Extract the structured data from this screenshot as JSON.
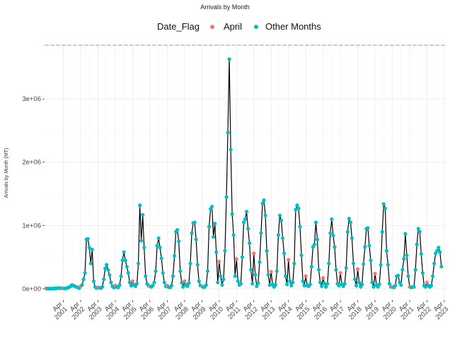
{
  "chart_data": {
    "type": "line",
    "title": "Arrivals by Month",
    "xlabel": "",
    "ylabel": "Arrivals by Month (MT)",
    "legend": {
      "title": "Date_Flag",
      "position": "top",
      "entries": [
        {
          "label": "April",
          "color": "#F8766D"
        },
        {
          "label": "Other Months",
          "color": "#00BFC4"
        }
      ]
    },
    "grid": true,
    "line_color": "#000000",
    "x_ticks": [
      {
        "month": "Apr",
        "year": "2001"
      },
      {
        "month": "Apr",
        "year": "2002"
      },
      {
        "month": "Apr",
        "year": "2003"
      },
      {
        "month": "Apr",
        "year": "2004"
      },
      {
        "month": "Apr",
        "year": "2005"
      },
      {
        "month": "Apr",
        "year": "2006"
      },
      {
        "month": "Apr",
        "year": "2007"
      },
      {
        "month": "Apr",
        "year": "2008"
      },
      {
        "month": "Apr",
        "year": "2009"
      },
      {
        "month": "Apr",
        "year": "2010"
      },
      {
        "month": "Apr",
        "year": "2011"
      },
      {
        "month": "Apr",
        "year": "2012"
      },
      {
        "month": "Apr",
        "year": "2013"
      },
      {
        "month": "Apr",
        "year": "2014"
      },
      {
        "month": "Apr",
        "year": "2015"
      },
      {
        "month": "Apr",
        "year": "2016"
      },
      {
        "month": "Apr",
        "year": "2017"
      },
      {
        "month": "Apr",
        "year": "2018"
      },
      {
        "month": "Apr",
        "year": "2019"
      },
      {
        "month": "Apr",
        "year": "2020"
      },
      {
        "month": "Apr",
        "year": "2021"
      },
      {
        "month": "Apr",
        "year": "2022"
      },
      {
        "month": "Apr",
        "year": "2023"
      }
    ],
    "y_ticks": [
      {
        "value": 0,
        "label": "0e+00"
      },
      {
        "value": 1000000,
        "label": "1e+06"
      },
      {
        "value": 2000000,
        "label": "2e+06"
      },
      {
        "value": 3000000,
        "label": "3e+06"
      }
    ],
    "xlim": [
      "2000-03",
      "2023-05"
    ],
    "ylim": [
      -180000,
      3850000
    ],
    "x_start": "2000-04",
    "series": [
      {
        "name": "",
        "values": [
          5000,
          3000,
          2000,
          3000,
          2000,
          4000,
          6000,
          8000,
          10000,
          12000,
          10000,
          8000,
          6000,
          5000,
          8000,
          15000,
          25000,
          40000,
          60000,
          50000,
          40000,
          30000,
          20000,
          10000,
          40000,
          60000,
          150000,
          250000,
          780000,
          790000,
          650000,
          400000,
          620000,
          120000,
          30000,
          10000,
          20000,
          15000,
          10000,
          30000,
          150000,
          320000,
          380000,
          300000,
          220000,
          100000,
          40000,
          20000,
          50000,
          30000,
          20000,
          60000,
          200000,
          450000,
          580000,
          450000,
          350000,
          250000,
          100000,
          50000,
          120000,
          60000,
          40000,
          80000,
          400000,
          1320000,
          760000,
          1170000,
          650000,
          200000,
          80000,
          50000,
          40000,
          30000,
          50000,
          100000,
          280000,
          680000,
          800000,
          650000,
          480000,
          250000,
          100000,
          40000,
          50000,
          25000,
          20000,
          50000,
          200000,
          520000,
          900000,
          930000,
          750000,
          280000,
          100000,
          30000,
          120000,
          60000,
          40000,
          90000,
          400000,
          880000,
          1040000,
          1050000,
          780000,
          380000,
          120000,
          50000,
          40000,
          25000,
          30000,
          60000,
          280000,
          980000,
          1260000,
          1300000,
          820000,
          1030000,
          580000,
          100000,
          430000,
          200000,
          60000,
          150000,
          600000,
          1450000,
          2470000,
          3630000,
          2200000,
          1180000,
          850000,
          200000,
          470000,
          120000,
          60000,
          80000,
          500000,
          1050000,
          1100000,
          1220000,
          950000,
          720000,
          300000,
          80000,
          560000,
          220000,
          40000,
          90000,
          420000,
          880000,
          1350000,
          1400000,
          1160000,
          600000,
          220000,
          60000,
          270000,
          70000,
          30000,
          60000,
          280000,
          850000,
          1160000,
          1080000,
          800000,
          560000,
          200000,
          70000,
          460000,
          120000,
          50000,
          100000,
          400000,
          1250000,
          1320000,
          1270000,
          980000,
          530000,
          120000,
          50000,
          200000,
          50000,
          40000,
          70000,
          350000,
          660000,
          700000,
          1050000,
          780000,
          300000,
          100000,
          40000,
          170000,
          80000,
          30000,
          80000,
          400000,
          880000,
          1100000,
          840000,
          660000,
          300000,
          80000,
          50000,
          250000,
          70000,
          40000,
          80000,
          330000,
          900000,
          1110000,
          1050000,
          800000,
          400000,
          150000,
          50000,
          310000,
          100000,
          30000,
          70000,
          390000,
          660000,
          950000,
          960000,
          680000,
          450000,
          100000,
          30000,
          240000,
          60000,
          30000,
          70000,
          380000,
          900000,
          1340000,
          1270000,
          600000,
          380000,
          80000,
          30000,
          30000,
          20000,
          50000,
          200000,
          210000,
          100000,
          60000,
          300000,
          470000,
          870000,
          530000,
          200000,
          30000,
          20000,
          30000,
          30000,
          300000,
          700000,
          950000,
          900000,
          550000,
          250000,
          50000,
          30000,
          100000,
          50000,
          30000,
          50000,
          200000,
          400000,
          560000,
          600000,
          650000,
          580000,
          350000
        ]
      }
    ]
  }
}
